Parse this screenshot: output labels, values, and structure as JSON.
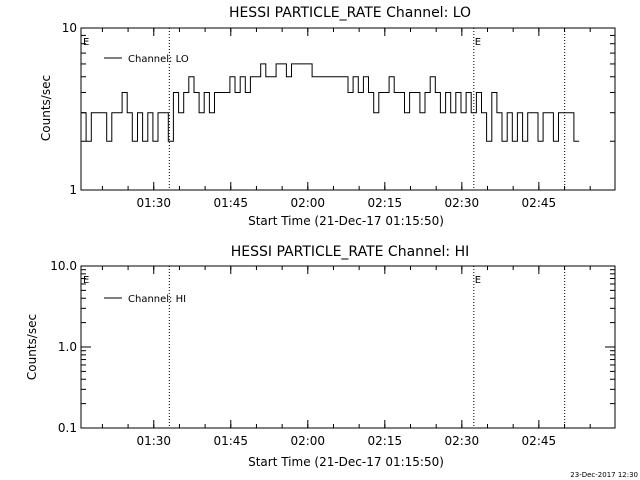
{
  "chart_data": [
    {
      "type": "line",
      "title": "HESSI PARTICLE_RATE Channel: LO",
      "xlabel": "Start Time (21-Dec-17 01:15:50)",
      "ylabel": "Counts/sec",
      "yscale": "log",
      "ylim": [
        1,
        10
      ],
      "xlim_minutes": [
        0,
        104
      ],
      "x_unit": "minutes after 01:15:50",
      "x_tick_labels": [
        "01:30",
        "01:45",
        "02:00",
        "02:15",
        "02:30",
        "02:45"
      ],
      "x_tick_minutes": [
        14.17,
        29.17,
        44.17,
        59.17,
        74.17,
        89.17
      ],
      "y_tick_labels": [
        "1",
        "10"
      ],
      "y_tick_values": [
        1,
        10
      ],
      "legend": "Channel: LO",
      "event_markers": [
        {
          "label": "E",
          "minute": 0
        },
        {
          "label": "E",
          "minute": 76.5
        }
      ],
      "dotted_verticals_minutes": [
        17.2,
        76.5,
        94.2
      ],
      "series": [
        {
          "name": "Channel: LO",
          "x": [
            0,
            1,
            2,
            3,
            4,
            5,
            6,
            7,
            8,
            9,
            10,
            11,
            12,
            13,
            14,
            15,
            16,
            17,
            18,
            19,
            20,
            21,
            22,
            23,
            24,
            25,
            26,
            27,
            28,
            29,
            30,
            31,
            32,
            33,
            34,
            35,
            36,
            37,
            38,
            39,
            40,
            41,
            42,
            43,
            44,
            45,
            46,
            47,
            48,
            49,
            50,
            51,
            52,
            53,
            54,
            55,
            56,
            57,
            58,
            59,
            60,
            61,
            62,
            63,
            64,
            65,
            66,
            67,
            68,
            69,
            70,
            71,
            72,
            73,
            74,
            75,
            76,
            77,
            78,
            79,
            80,
            81,
            82,
            83,
            84,
            85,
            86,
            87,
            88,
            89,
            90,
            91,
            92,
            93,
            94,
            95,
            96
          ],
          "values": [
            3,
            2,
            3,
            3,
            3,
            2,
            3,
            3,
            4,
            3,
            2,
            3,
            2,
            3,
            2,
            3,
            3,
            2,
            4,
            3,
            4,
            5,
            4,
            3,
            4,
            3,
            4,
            4,
            4,
            5,
            4,
            5,
            4,
            5,
            5,
            6,
            5,
            5,
            6,
            6,
            5,
            6,
            6,
            6,
            6,
            5,
            5,
            5,
            5,
            5,
            5,
            5,
            4,
            5,
            4,
            5,
            4,
            3,
            4,
            4,
            5,
            4,
            4,
            3,
            4,
            4,
            3,
            4,
            5,
            4,
            3,
            4,
            3,
            4,
            3,
            4,
            3,
            4,
            3,
            2,
            4,
            3,
            2,
            3,
            2,
            3,
            2,
            3,
            3,
            2,
            3,
            3,
            2,
            3,
            3,
            3,
            2
          ]
        }
      ]
    },
    {
      "type": "line",
      "title": "HESSI PARTICLE_RATE Channel: HI",
      "xlabel": "Start Time (21-Dec-17 01:15:50)",
      "ylabel": "Counts/sec",
      "yscale": "log",
      "ylim": [
        0.1,
        10
      ],
      "xlim_minutes": [
        0,
        104
      ],
      "x_unit": "minutes after 01:15:50",
      "x_tick_labels": [
        "01:30",
        "01:45",
        "02:00",
        "02:15",
        "02:30",
        "02:45"
      ],
      "x_tick_minutes": [
        14.17,
        29.17,
        44.17,
        59.17,
        74.17,
        89.17
      ],
      "y_tick_labels": [
        "0.1",
        "1.0",
        "10.0"
      ],
      "y_tick_values": [
        0.1,
        1,
        10
      ],
      "legend": "Channel: HI",
      "event_markers": [
        {
          "label": "E",
          "minute": 0
        },
        {
          "label": "E",
          "minute": 76.5
        }
      ],
      "dotted_verticals_minutes": [
        17.2,
        76.5,
        94.2
      ],
      "series": [
        {
          "name": "Channel: HI",
          "x": [],
          "values": []
        }
      ]
    }
  ],
  "footer": {
    "timestamp": "23-Dec-2017 12:30"
  }
}
